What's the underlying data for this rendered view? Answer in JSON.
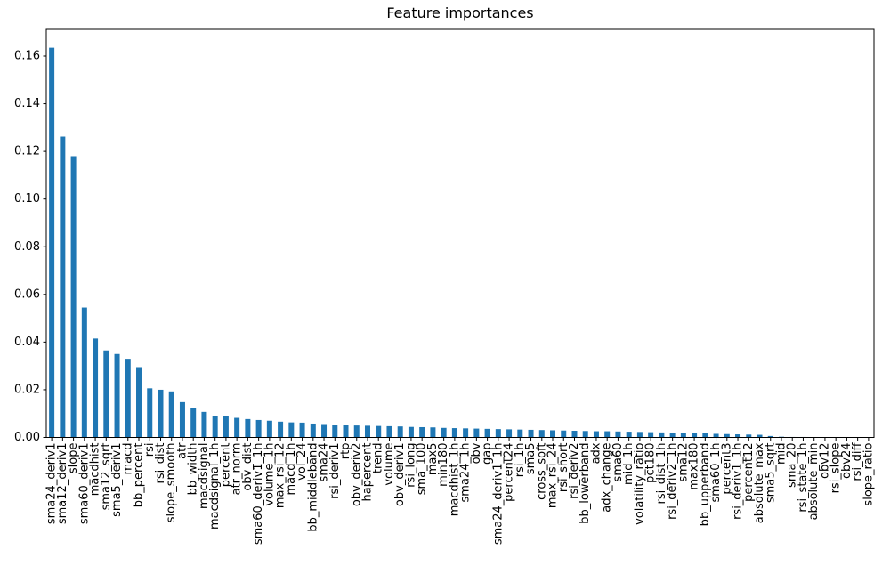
{
  "chart_data": {
    "type": "bar",
    "title": "Feature importances",
    "xlabel": "",
    "ylabel": "",
    "grid": false,
    "legend": null,
    "bar_color": "#1f77b4",
    "ylim": [
      0,
      0.1712
    ],
    "yticks": [
      0.0,
      0.02,
      0.04,
      0.06,
      0.08,
      0.1,
      0.12,
      0.14,
      0.16
    ],
    "ytick_labels": [
      "0.00",
      "0.02",
      "0.04",
      "0.06",
      "0.08",
      "0.10",
      "0.12",
      "0.14",
      "0.16"
    ],
    "categories": [
      "sma24_deriv1",
      "sma12_deriv1",
      "slope",
      "sma60_deriv1",
      "macdhist",
      "sma12_sqrt",
      "sma5_deriv1",
      "macd",
      "bb_percent",
      "rsi",
      "rsi_dist",
      "slope_smooth",
      "atr",
      "bb_width",
      "macdsignal",
      "macdsignal_1h",
      "percent",
      "atr_norm",
      "obv_dist",
      "sma60_deriv1_1h",
      "volume_1h",
      "max_rsi_12",
      "macd_1h",
      "vol_24",
      "bb_middleband",
      "sma24",
      "rsi_deriv1",
      "rtp",
      "obv_deriv2",
      "hapercent",
      "trend",
      "volume",
      "obv_deriv1",
      "rsi_long",
      "sma_100",
      "max5",
      "min180",
      "macdhist_1h",
      "sma24_1h",
      "obv",
      "gap",
      "sma24_deriv1_1h",
      "percent24",
      "rsi_1h",
      "sma5",
      "cross_soft",
      "max_rsi_24",
      "rsi_short",
      "rsi_deriv2",
      "bb_lowerband",
      "adx",
      "adx_change",
      "sma60",
      "mid_1h",
      "volatility_ratio",
      "pct180",
      "rsi_dist_1h",
      "rsi_deriv2_1h",
      "sma12",
      "max180",
      "bb_upperband",
      "sma60_1h",
      "percent3",
      "rsi_deriv1_1h",
      "percent12",
      "absolute_max",
      "sma5_sqrt",
      "mid",
      "sma_20",
      "rsi_state_1h",
      "absolute_min",
      "obv12",
      "rsi_slope",
      "obv24",
      "rsi_diff",
      "slope_ratio"
    ],
    "values": [
      0.1635,
      0.1262,
      0.118,
      0.0545,
      0.0415,
      0.0365,
      0.035,
      0.033,
      0.0295,
      0.0206,
      0.02,
      0.0193,
      0.0148,
      0.0125,
      0.0107,
      0.009,
      0.0088,
      0.0082,
      0.0077,
      0.0073,
      0.007,
      0.0066,
      0.0063,
      0.0062,
      0.0058,
      0.0056,
      0.0054,
      0.0052,
      0.005,
      0.0049,
      0.0048,
      0.0047,
      0.0046,
      0.0044,
      0.0043,
      0.0042,
      0.004,
      0.0039,
      0.0038,
      0.0037,
      0.0036,
      0.0035,
      0.0034,
      0.0033,
      0.0032,
      0.0031,
      0.003,
      0.0029,
      0.0028,
      0.0027,
      0.0026,
      0.0026,
      0.0025,
      0.0024,
      0.0023,
      0.0022,
      0.0021,
      0.002,
      0.0019,
      0.0018,
      0.0017,
      0.0015,
      0.0014,
      0.0013,
      0.0012,
      0.0011,
      0.0006,
      0.0003,
      0.0002,
      0.0002,
      0.0001,
      0.0001,
      0.0001,
      0.0001,
      0.0,
      0.0
    ]
  }
}
